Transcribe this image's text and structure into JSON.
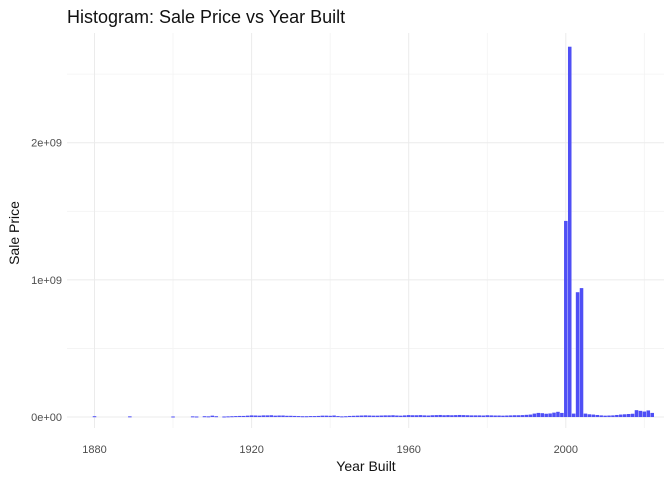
{
  "chart_data": {
    "type": "bar",
    "title": "Histogram: Sale Price vs Year Built",
    "xlabel": "Year Built",
    "ylabel": "Sale Price",
    "xlim": [
      1873,
      2025
    ],
    "ylim": [
      -80000000,
      2800000000
    ],
    "x_ticks": [
      1880,
      1920,
      1960,
      2000
    ],
    "x_tick_labels": [
      "1880",
      "1920",
      "1960",
      "2000"
    ],
    "y_ticks": [
      0,
      1000000000,
      2000000000
    ],
    "y_tick_labels": [
      "0e+00",
      "1e+09",
      "2e+09"
    ],
    "grid": true,
    "legend": "none",
    "bar_color": "#4f4ff5",
    "x": [
      1880,
      1889,
      1900,
      1905,
      1906,
      1908,
      1909,
      1910,
      1911,
      1913,
      1914,
      1915,
      1916,
      1917,
      1918,
      1919,
      1920,
      1921,
      1922,
      1923,
      1924,
      1925,
      1926,
      1927,
      1928,
      1929,
      1930,
      1931,
      1932,
      1933,
      1934,
      1935,
      1936,
      1937,
      1938,
      1939,
      1940,
      1941,
      1942,
      1943,
      1944,
      1945,
      1946,
      1947,
      1948,
      1949,
      1950,
      1951,
      1952,
      1953,
      1954,
      1955,
      1956,
      1957,
      1958,
      1959,
      1960,
      1961,
      1962,
      1963,
      1964,
      1965,
      1966,
      1967,
      1968,
      1969,
      1970,
      1971,
      1972,
      1973,
      1974,
      1975,
      1976,
      1977,
      1978,
      1979,
      1980,
      1981,
      1982,
      1983,
      1984,
      1985,
      1986,
      1987,
      1988,
      1989,
      1990,
      1991,
      1992,
      1993,
      1994,
      1995,
      1996,
      1997,
      1998,
      1999,
      2000,
      2001,
      2002,
      2003,
      2004,
      2005,
      2006,
      2007,
      2008,
      2009,
      2010,
      2011,
      2012,
      2013,
      2014,
      2015,
      2016,
      2017,
      2018,
      2019,
      2020,
      2021,
      2022
    ],
    "values": [
      6000000,
      5000000,
      4000000,
      5000000,
      4000000,
      6000000,
      5000000,
      10000000,
      6000000,
      4000000,
      5000000,
      6000000,
      7000000,
      8000000,
      8000000,
      10000000,
      12000000,
      11000000,
      10000000,
      12000000,
      12000000,
      13000000,
      10000000,
      11000000,
      11000000,
      9000000,
      9000000,
      8000000,
      7000000,
      6000000,
      6000000,
      7000000,
      7000000,
      8000000,
      10000000,
      10000000,
      9000000,
      11000000,
      7000000,
      5000000,
      6000000,
      8000000,
      9000000,
      10000000,
      11000000,
      12000000,
      11000000,
      10000000,
      10000000,
      11000000,
      12000000,
      12000000,
      13000000,
      11000000,
      10000000,
      12000000,
      14000000,
      13000000,
      13000000,
      14000000,
      12000000,
      11000000,
      13000000,
      14000000,
      15000000,
      13000000,
      14000000,
      13000000,
      14000000,
      15000000,
      14000000,
      13000000,
      12000000,
      12000000,
      12000000,
      11000000,
      13000000,
      12000000,
      11000000,
      11000000,
      10000000,
      11000000,
      12000000,
      13000000,
      13000000,
      14000000,
      16000000,
      18000000,
      25000000,
      30000000,
      28000000,
      24000000,
      26000000,
      32000000,
      38000000,
      30000000,
      1430000000,
      2700000000,
      25000000,
      910000000,
      940000000,
      25000000,
      20000000,
      18000000,
      15000000,
      12000000,
      10000000,
      11000000,
      12000000,
      15000000,
      18000000,
      20000000,
      22000000,
      24000000,
      50000000,
      45000000,
      40000000,
      48000000,
      30000000
    ]
  }
}
